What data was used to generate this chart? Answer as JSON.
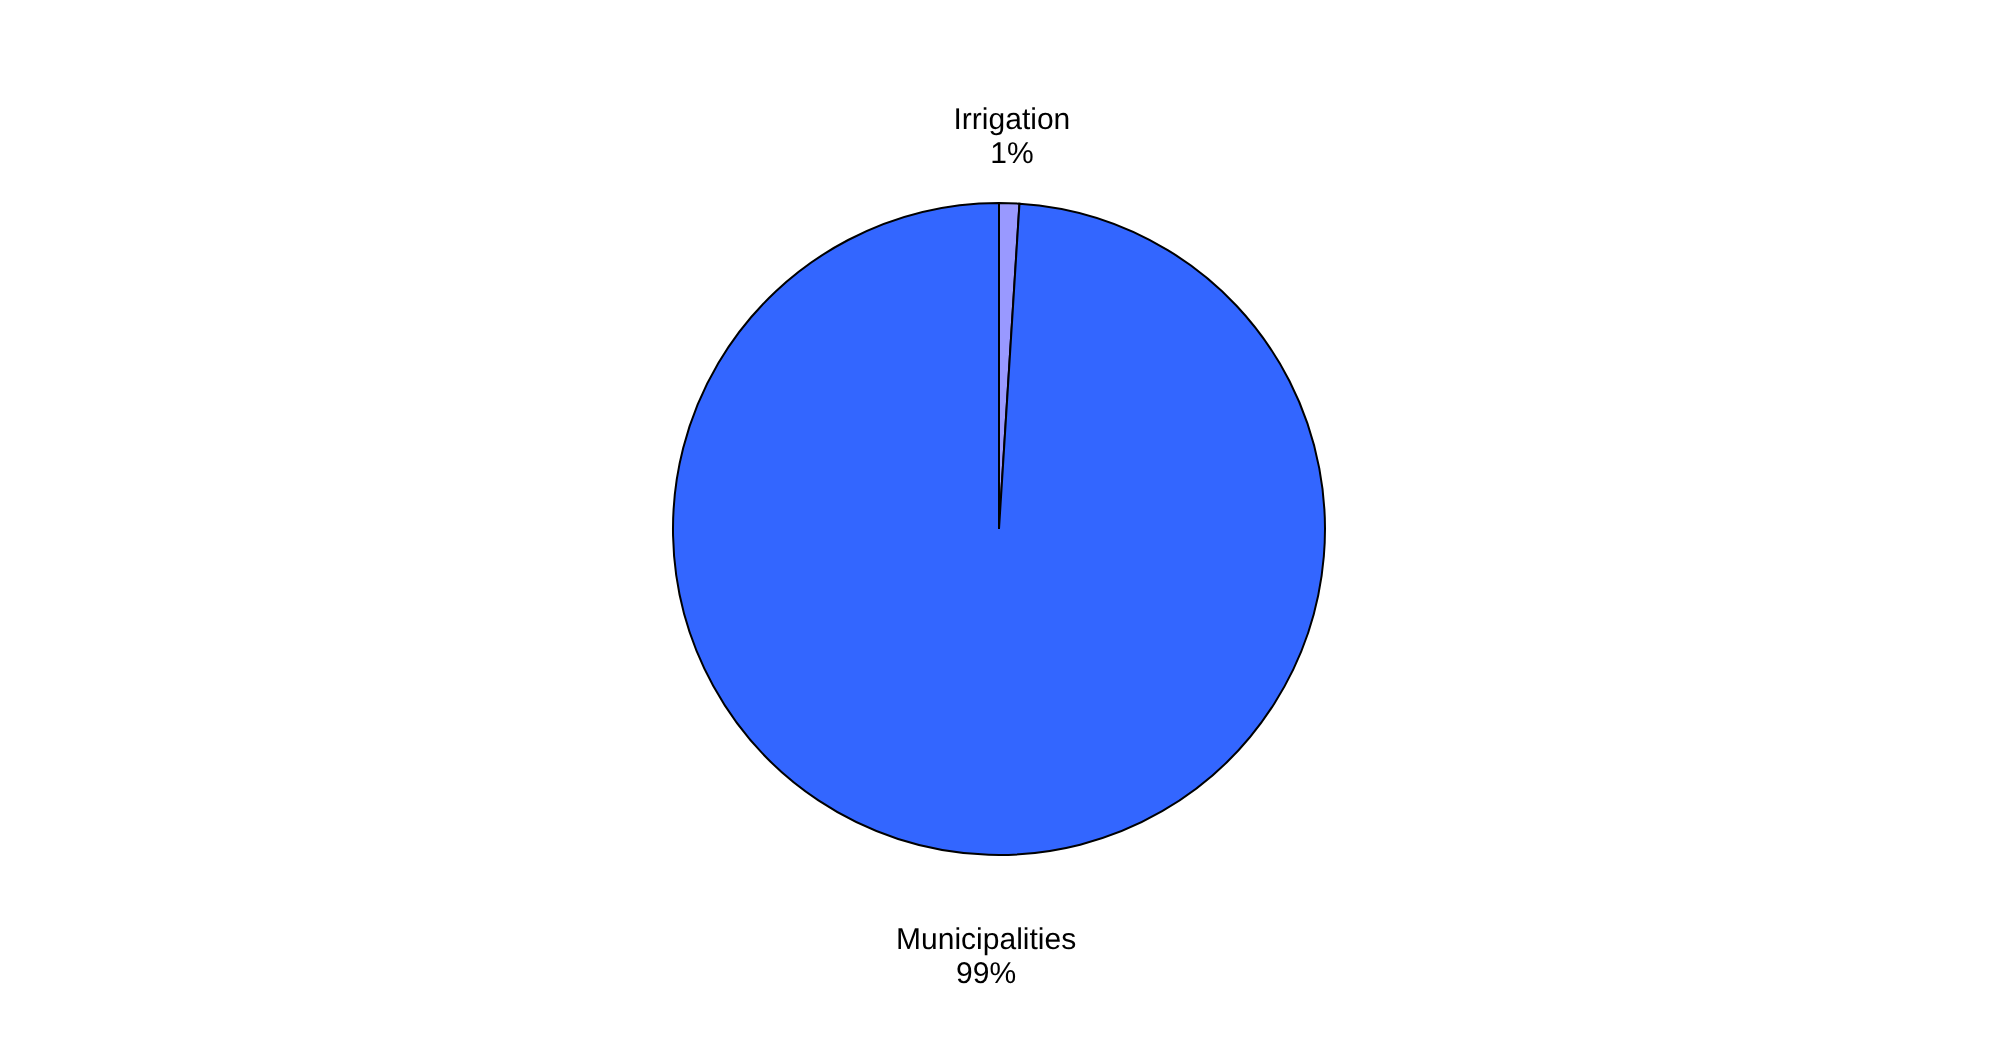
{
  "chart_data": {
    "type": "pie",
    "categories": [
      "Irrigation",
      "Municipalities"
    ],
    "values": [
      1,
      99
    ],
    "value_labels": [
      "1%",
      "99%"
    ],
    "colors": [
      "#9999ff",
      "#3366ff"
    ],
    "legend": false
  }
}
